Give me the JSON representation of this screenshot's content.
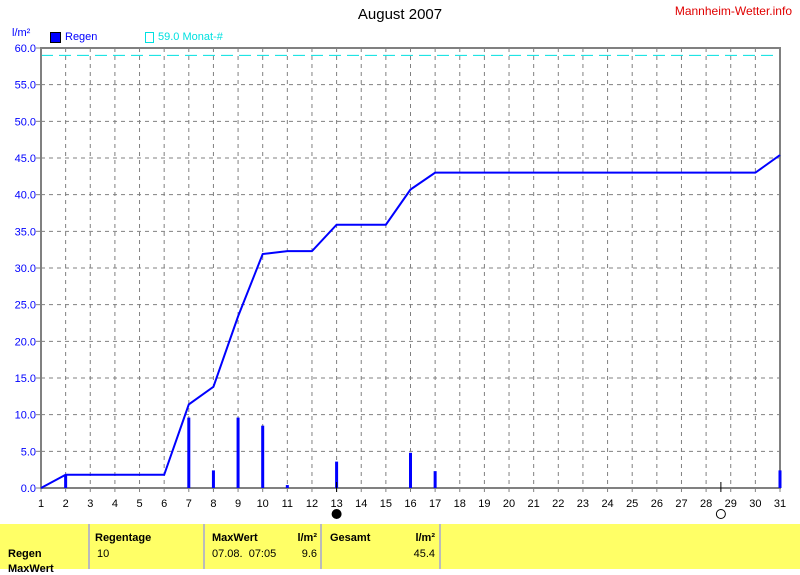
{
  "title": "August 2007",
  "site": "Mannheim-Wetter.info",
  "unit": "l/m²",
  "legend": {
    "rain": "Regen",
    "month": "59.0 Monat-#"
  },
  "colors": {
    "rain": "#0000ff",
    "month_avg": "#00e0e0",
    "grid": "#808080",
    "table_bg": "#ffff66",
    "site": "#e00000"
  },
  "chart_data": {
    "type": "bar+line",
    "title": "August 2007",
    "ylabel": "l/m²",
    "ylim": [
      0,
      60
    ],
    "yticks": [
      "0.0",
      "5.0",
      "10.0",
      "15.0",
      "20.0",
      "25.0",
      "30.0",
      "35.0",
      "40.0",
      "45.0",
      "50.0",
      "55.0",
      "60.0"
    ],
    "xlim": [
      1,
      31
    ],
    "xticks": [
      "1",
      "2",
      "3",
      "4",
      "5",
      "6",
      "7",
      "8",
      "9",
      "10",
      "11",
      "12",
      "13",
      "14",
      "15",
      "16",
      "17",
      "18",
      "19",
      "20",
      "21",
      "22",
      "23",
      "24",
      "25",
      "26",
      "27",
      "28",
      "29",
      "30",
      "31"
    ],
    "grid": true,
    "monthly_reference": 59.0,
    "daily_rain": {
      "days": [
        2,
        7,
        8,
        9,
        10,
        11,
        13,
        16,
        17,
        31
      ],
      "values": [
        1.8,
        9.6,
        2.4,
        9.6,
        8.5,
        0.4,
        3.6,
        4.8,
        2.3,
        2.4
      ]
    },
    "cumulative": {
      "x": [
        1,
        2,
        6,
        7,
        8,
        9,
        10,
        11,
        12,
        13,
        15,
        16,
        17,
        30,
        31
      ],
      "y": [
        0,
        1.8,
        1.8,
        11.4,
        13.8,
        23.4,
        31.9,
        32.3,
        32.3,
        35.9,
        35.9,
        40.7,
        43.0,
        43.0,
        45.4
      ]
    },
    "moon_phases": [
      {
        "day": 13,
        "phase": "full-moon-filled"
      },
      {
        "day": 28.6,
        "phase": "open-circle"
      }
    ]
  },
  "table": {
    "row_label": "Regen",
    "row2_label": "MaxWert",
    "regentage_h": "Regentage",
    "regentage": "10",
    "maxwert_h": "MaxWert",
    "maxwert_unit": "l/m²",
    "maxwert_date": "07.08.  07:05",
    "maxwert": "9.6",
    "gesamt_h": "Gesamt",
    "gesamt_unit": "l/m²",
    "gesamt": "45.4"
  }
}
